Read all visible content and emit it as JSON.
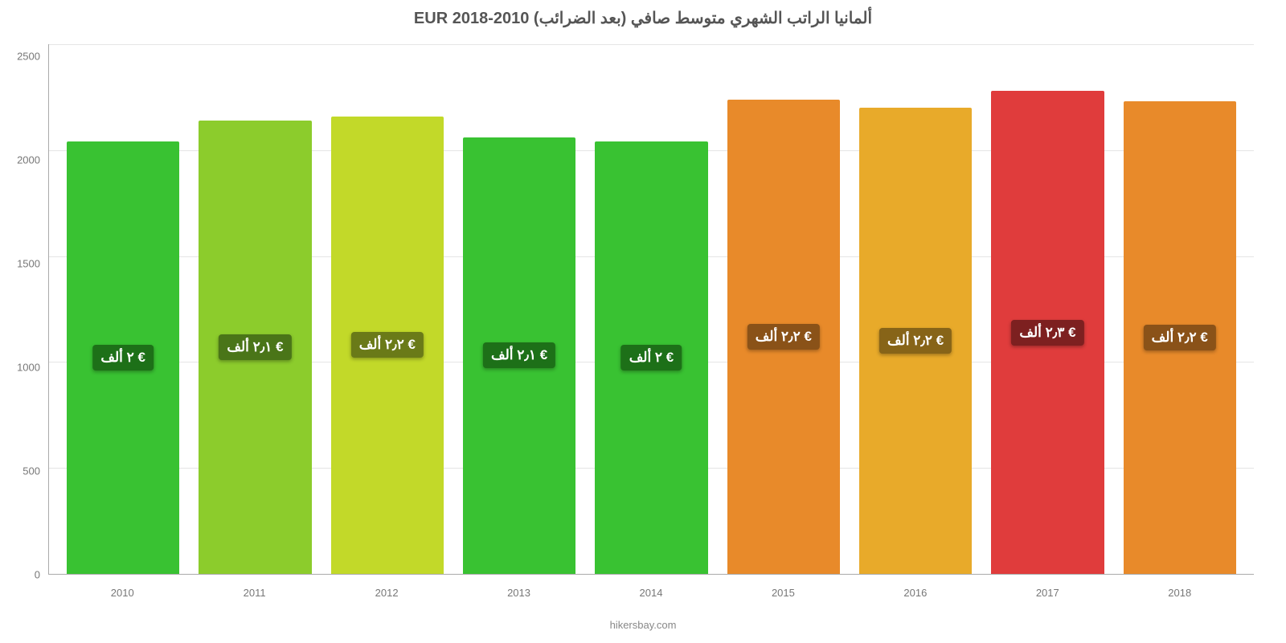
{
  "chart": {
    "type": "bar",
    "title": "ألمانيا الراتب الشهري متوسط صافي (بعد الضرائب) EUR 2018-2010",
    "attribution": "hikersbay.com",
    "background_color": "#ffffff",
    "grid_color": "#e5e5e5",
    "axis_color": "#aaaaaa",
    "title_color": "#555555",
    "title_fontsize": 20,
    "label_fontsize": 13,
    "bar_label_fontsize": 17,
    "ylim": [
      0,
      2500
    ],
    "ytick_step": 500,
    "yticks": [
      "2500",
      "2000",
      "1500",
      "1000",
      "500",
      "0"
    ],
    "categories": [
      "2010",
      "2011",
      "2012",
      "2013",
      "2014",
      "2015",
      "2016",
      "2017",
      "2018"
    ],
    "values": [
      2040,
      2140,
      2160,
      2060,
      2040,
      2240,
      2200,
      2280,
      2230
    ],
    "bar_labels": [
      "€ ٢ ألف",
      "€ ٢٫١ ألف",
      "€ ٢٫٢ ألف",
      "€ ٢٫١ ألف",
      "€ ٢ ألف",
      "€ ٢٫٢ ألف",
      "€ ٢٫٢ ألف",
      "€ ٢٫٣ ألف",
      "€ ٢٫٢ ألف"
    ],
    "bar_colors": [
      "#39c232",
      "#8ccc2c",
      "#c2d929",
      "#39c232",
      "#39c232",
      "#e88a2a",
      "#e8aa2a",
      "#e03c3c",
      "#e88a2a"
    ],
    "bar_label_bg_colors": [
      "#1d7018",
      "#4a7518",
      "#6a7a18",
      "#1d7018",
      "#1d7018",
      "#8a5218",
      "#876418",
      "#7d2020",
      "#8a5218"
    ]
  }
}
